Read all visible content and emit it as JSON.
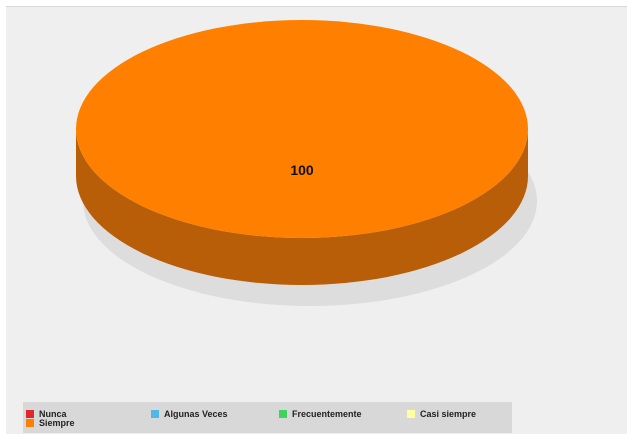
{
  "chart_data": {
    "type": "pie",
    "title": "",
    "slices": [
      {
        "label": "Nunca",
        "value": 0,
        "color": "#e02828"
      },
      {
        "label": "Algunas Veces",
        "value": 0,
        "color": "#4fb8e8"
      },
      {
        "label": "Frecuentemente",
        "value": 0,
        "color": "#3cd45a"
      },
      {
        "label": "Casi siempre",
        "value": 0,
        "color": "#ffffa0"
      },
      {
        "label": "Siempre",
        "value": 100,
        "color": "#ff8000"
      }
    ],
    "data_labels": [
      "100"
    ],
    "legend_position": "bottom",
    "style": "3d"
  },
  "colors": {
    "side": "#b85d08",
    "shadow": "#dddddd",
    "background": "#efefef",
    "legend_background": "#d8d8d8"
  }
}
